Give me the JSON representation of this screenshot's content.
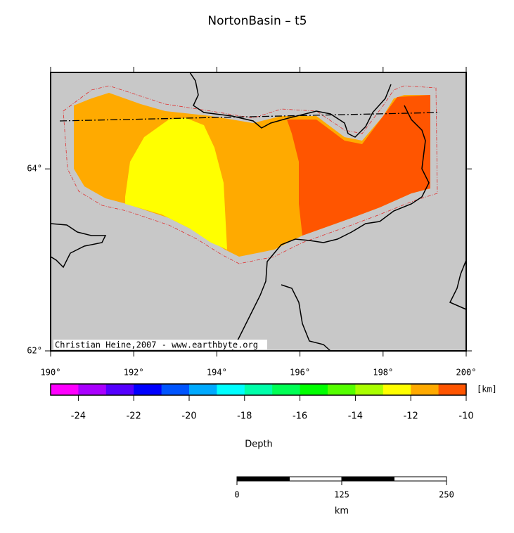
{
  "title": "NortonBasin – t5",
  "map": {
    "lon_range": [
      190,
      200
    ],
    "lat_range": [
      62,
      65.06
    ],
    "lon_ticks": [
      {
        "value": 190,
        "label": "190°"
      },
      {
        "value": 192,
        "label": "192°"
      },
      {
        "value": 194,
        "label": "194°"
      },
      {
        "value": 196,
        "label": "196°"
      },
      {
        "value": 198,
        "label": "198°"
      },
      {
        "value": 200,
        "label": "200°"
      }
    ],
    "lat_ticks": [
      {
        "value": 62,
        "label": "62°"
      },
      {
        "value": 64,
        "label": "64°"
      }
    ],
    "credit": "Christian Heine,2007 - www.earthbyte.org"
  },
  "colorbar": {
    "label": "Depth",
    "unit": "[km]",
    "range": [
      -25,
      -10
    ],
    "colors": [
      "#ff00ff",
      "#aa00ff",
      "#5500ff",
      "#0000ff",
      "#0055ff",
      "#00aaff",
      "#00ffff",
      "#00ffaa",
      "#00ff55",
      "#00ff00",
      "#55ff00",
      "#aaff00",
      "#ffff00",
      "#ffaa00",
      "#ff5500"
    ],
    "ticks": [
      -24,
      -22,
      -20,
      -18,
      -16,
      -14,
      -12,
      -10
    ]
  },
  "scale_bar": {
    "unit": "km",
    "range": [
      0,
      250
    ],
    "ticks": [
      0,
      125,
      250
    ]
  }
}
